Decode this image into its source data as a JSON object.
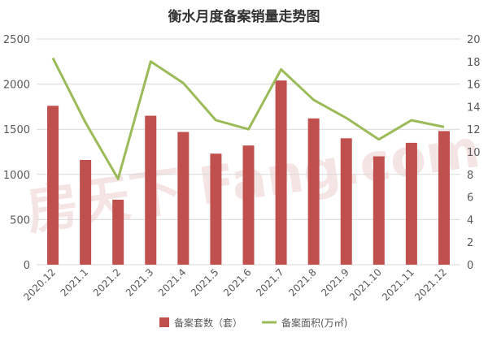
{
  "chart_data": {
    "type": "bar",
    "title": "衡水月度备案销量走势图",
    "categories": [
      "2020.12",
      "2021.1",
      "2021.2",
      "2021.3",
      "2021.4",
      "2021.5",
      "2021.6",
      "2021.7",
      "2021.8",
      "2021.9",
      "2021.10",
      "2021.11",
      "2021.12"
    ],
    "series": [
      {
        "name": "备案套数（套）",
        "type": "bar",
        "axis": "left",
        "color": "#c0504d",
        "values": [
          1760,
          1160,
          720,
          1650,
          1470,
          1230,
          1320,
          2040,
          1620,
          1400,
          1200,
          1350,
          1480
        ]
      },
      {
        "name": "备案面积(万㎡)",
        "type": "line",
        "axis": "right",
        "color": "#9bbb59",
        "values": [
          18.3,
          12.6,
          7.6,
          18.0,
          16.1,
          12.8,
          12.0,
          17.3,
          14.6,
          13.0,
          11.1,
          12.8,
          12.2
        ]
      }
    ],
    "y_left": {
      "min": 0,
      "max": 2500,
      "ticks": [
        0,
        500,
        1000,
        1500,
        2000,
        2500
      ]
    },
    "y_right": {
      "min": 0,
      "max": 20,
      "ticks": [
        0,
        2,
        4,
        6,
        8,
        10,
        12,
        14,
        16,
        18,
        20
      ]
    },
    "grid": true,
    "legend_position": "bottom",
    "watermark": "房天下 Fang.com"
  }
}
